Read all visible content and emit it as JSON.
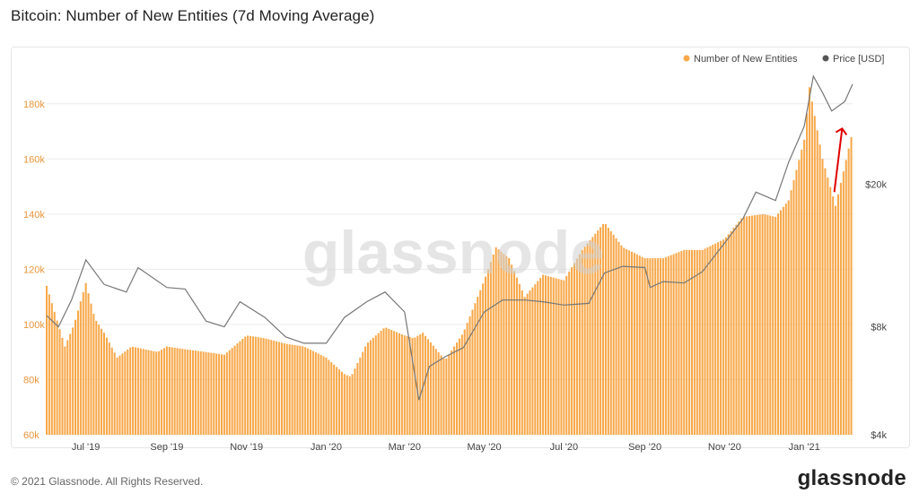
{
  "page": {
    "title": "Bitcoin: Number of New Entities (7d Moving Average)",
    "copyright": "© 2021 Glassnode. All Rights Reserved.",
    "brand": "glassnode",
    "watermark": "glassnode"
  },
  "colors": {
    "bars": "#f7a84a",
    "price_line": "#777777",
    "annotation_arrow": "#e00000",
    "left_axis_text": "#e8953a",
    "right_axis_text": "#444444"
  },
  "chart_data": {
    "type": "bar",
    "title": "Bitcoin: Number of New Entities (7d Moving Average)",
    "x_tick_labels": [
      "Jul '19",
      "Sep '19",
      "Nov '19",
      "Jan '20",
      "Mar '20",
      "May '20",
      "Jul '20",
      "Sep '20",
      "Nov '20",
      "Jan '21"
    ],
    "x_range": [
      "2019-06-01",
      "2021-02-07"
    ],
    "y_left": {
      "ticks": [
        "60k",
        "80k",
        "100k",
        "120k",
        "140k",
        "160k",
        "180k"
      ],
      "range": [
        60000,
        190000
      ]
    },
    "y_right": {
      "ticks": [
        "$4k",
        "$8k",
        "$20k"
      ],
      "scale": "log",
      "range": [
        4000,
        40000
      ]
    },
    "legend": {
      "placement": "top-right"
    },
    "grid": true,
    "series": [
      {
        "name": "Number of New Entities",
        "kind": "bar",
        "points": [
          [
            "2019-06-01",
            114000
          ],
          [
            "2019-06-08",
            103000
          ],
          [
            "2019-06-15",
            92000
          ],
          [
            "2019-06-22",
            100000
          ],
          [
            "2019-07-01",
            115000
          ],
          [
            "2019-07-08",
            102000
          ],
          [
            "2019-07-15",
            97000
          ],
          [
            "2019-07-25",
            88000
          ],
          [
            "2019-08-05",
            92000
          ],
          [
            "2019-08-15",
            91000
          ],
          [
            "2019-08-25",
            90000
          ],
          [
            "2019-09-01",
            92000
          ],
          [
            "2019-09-15",
            91000
          ],
          [
            "2019-10-01",
            90000
          ],
          [
            "2019-10-15",
            89000
          ],
          [
            "2019-11-01",
            96000
          ],
          [
            "2019-11-15",
            95000
          ],
          [
            "2019-12-01",
            93000
          ],
          [
            "2019-12-15",
            92000
          ],
          [
            "2020-01-01",
            88000
          ],
          [
            "2020-01-15",
            82000
          ],
          [
            "2020-01-20",
            81000
          ],
          [
            "2020-02-01",
            93000
          ],
          [
            "2020-02-15",
            99000
          ],
          [
            "2020-03-01",
            96000
          ],
          [
            "2020-03-08",
            95000
          ],
          [
            "2020-03-15",
            97000
          ],
          [
            "2020-04-01",
            87000
          ],
          [
            "2020-04-15",
            97000
          ],
          [
            "2020-05-01",
            116000
          ],
          [
            "2020-05-10",
            128000
          ],
          [
            "2020-05-20",
            124000
          ],
          [
            "2020-06-01",
            110000
          ],
          [
            "2020-06-15",
            118000
          ],
          [
            "2020-07-01",
            116000
          ],
          [
            "2020-07-15",
            127000
          ],
          [
            "2020-08-01",
            137000
          ],
          [
            "2020-08-15",
            128000
          ],
          [
            "2020-09-01",
            124000
          ],
          [
            "2020-09-15",
            124000
          ],
          [
            "2020-10-01",
            127000
          ],
          [
            "2020-10-15",
            127000
          ],
          [
            "2020-11-01",
            131000
          ],
          [
            "2020-11-15",
            139000
          ],
          [
            "2020-12-01",
            140000
          ],
          [
            "2020-12-10",
            139000
          ],
          [
            "2020-12-20",
            145000
          ],
          [
            "2021-01-01",
            167000
          ],
          [
            "2021-01-05",
            186000
          ],
          [
            "2021-01-15",
            160000
          ],
          [
            "2021-01-25",
            143000
          ],
          [
            "2021-02-07",
            170000
          ]
        ]
      },
      {
        "name": "Price [USD]",
        "kind": "line",
        "points": [
          [
            "2019-06-01",
            8600
          ],
          [
            "2019-06-10",
            8000
          ],
          [
            "2019-06-20",
            9500
          ],
          [
            "2019-07-01",
            12300
          ],
          [
            "2019-07-15",
            10500
          ],
          [
            "2019-08-01",
            10000
          ],
          [
            "2019-08-10",
            11700
          ],
          [
            "2019-09-01",
            10300
          ],
          [
            "2019-09-15",
            10200
          ],
          [
            "2019-10-01",
            8300
          ],
          [
            "2019-10-15",
            8000
          ],
          [
            "2019-10-27",
            9400
          ],
          [
            "2019-11-15",
            8500
          ],
          [
            "2019-12-01",
            7500
          ],
          [
            "2019-12-15",
            7200
          ],
          [
            "2020-01-01",
            7200
          ],
          [
            "2020-01-15",
            8500
          ],
          [
            "2020-02-01",
            9400
          ],
          [
            "2020-02-15",
            10000
          ],
          [
            "2020-03-01",
            8800
          ],
          [
            "2020-03-12",
            5000
          ],
          [
            "2020-03-20",
            6200
          ],
          [
            "2020-04-01",
            6600
          ],
          [
            "2020-04-15",
            7000
          ],
          [
            "2020-05-01",
            8800
          ],
          [
            "2020-05-15",
            9500
          ],
          [
            "2020-06-01",
            9500
          ],
          [
            "2020-06-15",
            9400
          ],
          [
            "2020-07-01",
            9200
          ],
          [
            "2020-07-20",
            9300
          ],
          [
            "2020-08-01",
            11300
          ],
          [
            "2020-08-15",
            11800
          ],
          [
            "2020-09-01",
            11700
          ],
          [
            "2020-09-05",
            10300
          ],
          [
            "2020-09-15",
            10700
          ],
          [
            "2020-10-01",
            10600
          ],
          [
            "2020-10-15",
            11400
          ],
          [
            "2020-11-01",
            13700
          ],
          [
            "2020-11-15",
            16000
          ],
          [
            "2020-11-25",
            19000
          ],
          [
            "2020-12-10",
            18000
          ],
          [
            "2020-12-20",
            23000
          ],
          [
            "2021-01-01",
            29000
          ],
          [
            "2021-01-08",
            40000
          ],
          [
            "2021-01-15",
            36000
          ],
          [
            "2021-01-22",
            32000
          ],
          [
            "2021-02-01",
            34000
          ],
          [
            "2021-02-07",
            38000
          ]
        ]
      }
    ]
  }
}
